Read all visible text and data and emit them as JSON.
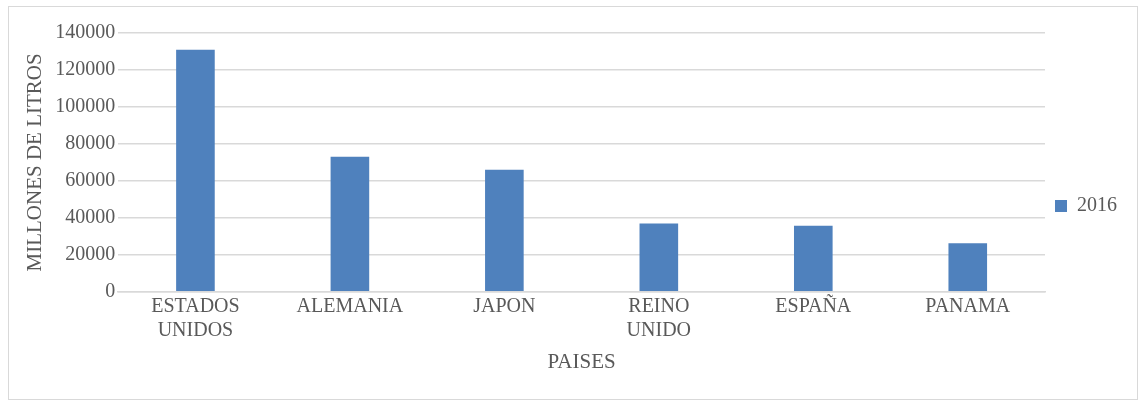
{
  "chart_data": {
    "type": "bar",
    "xlabel": "PAISES",
    "ylabel": "MILLONES DE LITROS",
    "categories": [
      "ESTADOS UNIDOS",
      "ALEMANIA",
      "JAPON",
      "REINO UNIDO",
      "ESPAÑA",
      "PANAMA"
    ],
    "series": [
      {
        "name": "2016",
        "color": "#4f81bd",
        "values": [
          131000,
          73000,
          66000,
          37000,
          35700,
          26200
        ]
      }
    ],
    "ylim": [
      0,
      140000
    ],
    "yticks": [
      0,
      20000,
      40000,
      60000,
      80000,
      100000,
      120000,
      140000
    ],
    "grid": "y",
    "legend": "right"
  }
}
